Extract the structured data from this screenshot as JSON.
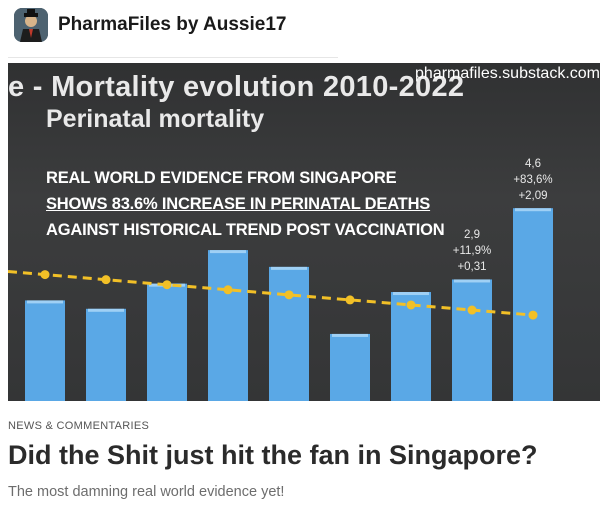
{
  "header": {
    "publication": "PharmaFiles by Aussie17",
    "avatar_icon": "avatar-icon"
  },
  "cover": {
    "chart_title": "e - Mortality evolution 2010-2022",
    "chart_subtitle": "Perinatal mortality",
    "watermark": "pharmafiles.substack.com",
    "claim_lines": [
      "REAL WORLD EVIDENCE FROM SINGAPORE",
      "SHOWS 83.6% INCREASE IN PERINATAL DEATHS",
      "AGAINST HISTORICAL TREND POST VACCINATION"
    ]
  },
  "chart_data": {
    "type": "bar",
    "title": "e - Mortality evolution 2010-2022",
    "subtitle": "Perinatal mortality",
    "values": [
      2.4,
      2.2,
      2.8,
      3.6,
      3.2,
      1.6,
      2.6,
      2.9,
      4.6
    ],
    "trend": [
      2.85,
      2.75,
      2.65,
      2.55,
      2.45,
      2.35,
      2.25,
      2.15,
      2.05
    ],
    "data_labels": [
      {
        "bar": 7,
        "lines": [
          "2,9",
          "+11,9%",
          "+0,31"
        ]
      },
      {
        "bar": 8,
        "lines": [
          "4,6",
          "+83,6%",
          "+2,09"
        ]
      }
    ],
    "ylim": [
      0,
      5
    ],
    "grid": false,
    "bar_color": "#5aa8e6",
    "trend_color": "#f2c027"
  },
  "article": {
    "category": "NEWS & COMMENTARIES",
    "title": "Did the Shit just hit the fan in Singapore?",
    "subtitle": "The most damning real world evidence yet!"
  }
}
